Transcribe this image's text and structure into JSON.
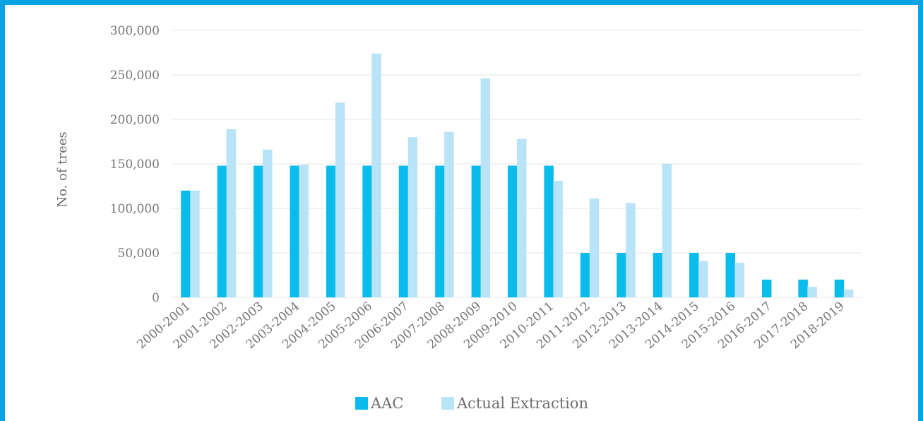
{
  "chart_data": {
    "type": "bar",
    "ylabel": "No. of trees",
    "xlabel": "",
    "ylim": [
      0,
      300000
    ],
    "yticks": [
      0,
      50000,
      100000,
      150000,
      200000,
      250000,
      300000
    ],
    "ytick_labels": [
      "0",
      "50,000",
      "100,000",
      "150,000",
      "200,000",
      "250,000",
      "300,000"
    ],
    "grid": true,
    "legend_position": "bottom-center",
    "categories": [
      "2000-2001",
      "2001-2002",
      "2002-2003",
      "2003-2004",
      "2004-2005",
      "2005-2006",
      "2006-2007",
      "2007-2008",
      "2008-2009",
      "2009-2010",
      "2010-2011",
      "2011-2012",
      "2012-2013",
      "2013-2014",
      "2014-2015",
      "2015-2016",
      "2016-2017",
      "2017-2018",
      "2018-2019"
    ],
    "series": [
      {
        "name": "AAC",
        "color": "#0abcec",
        "values": [
          120000,
          148000,
          148000,
          148000,
          148000,
          148000,
          148000,
          148000,
          148000,
          148000,
          148000,
          50000,
          50000,
          50000,
          50000,
          50000,
          20000,
          20000,
          20000
        ]
      },
      {
        "name": "Actual Extraction",
        "color": "#b9e3f7",
        "values": [
          120000,
          189000,
          166000,
          149000,
          219000,
          274000,
          180000,
          186000,
          246000,
          178000,
          131000,
          111000,
          106000,
          150000,
          41000,
          39000,
          0,
          12000,
          9000
        ]
      }
    ]
  }
}
